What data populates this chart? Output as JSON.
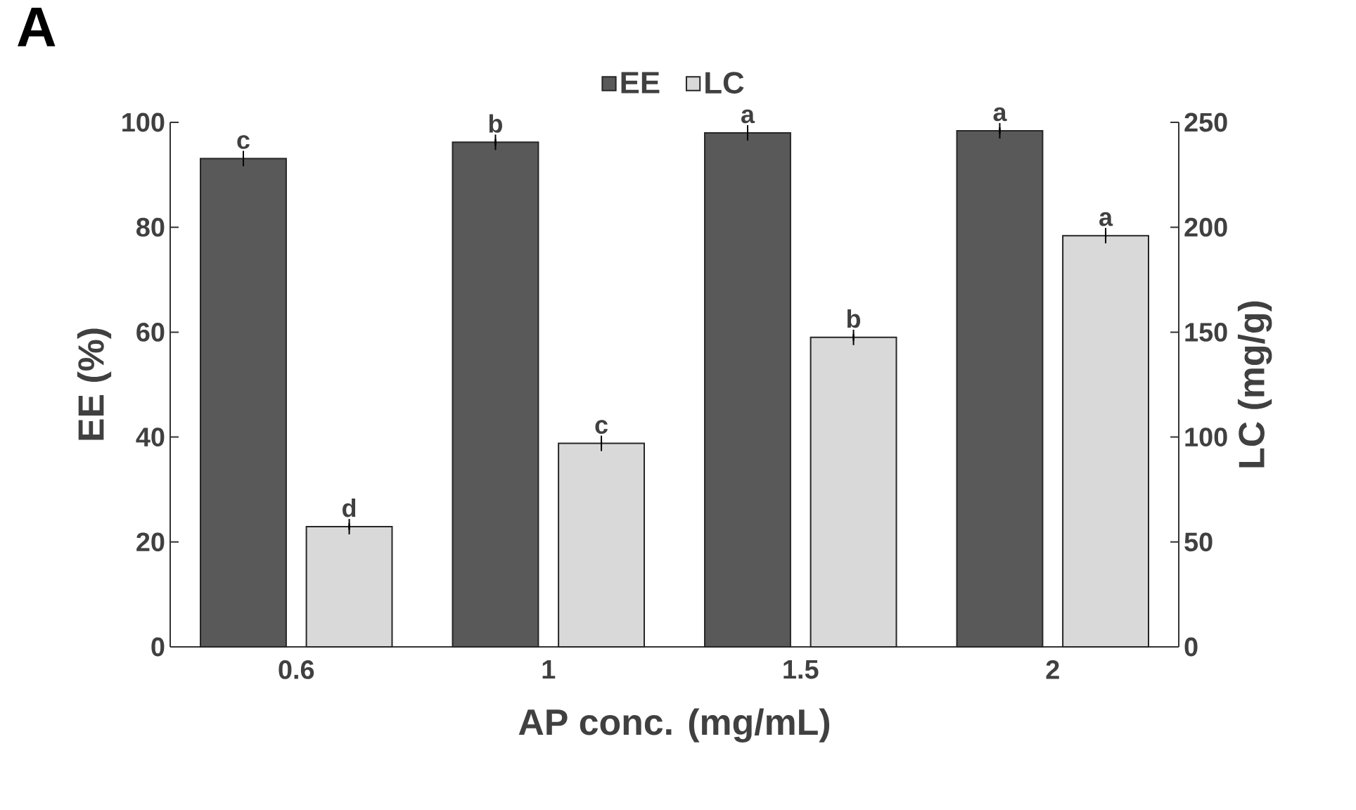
{
  "chart_data": {
    "type": "bar",
    "title": "A",
    "xlabel": "AP conc. (mg/mL)",
    "ylabel": "EE (%)",
    "y2label": "LC (mg/g)",
    "categories": [
      "0.6",
      "1",
      "1.5",
      "2"
    ],
    "series": [
      {
        "name": "EE",
        "color": "#595959",
        "values": [
          93.1,
          96.2,
          98.0,
          98.4
        ],
        "errors": [
          0.4,
          0.4,
          0.4,
          0.4
        ],
        "value_labels": [
          "c",
          "b",
          "a",
          "a"
        ]
      },
      {
        "name": "LC",
        "color": "#d9d9d9",
        "axis": "y2",
        "values": [
          57.3,
          97,
          147.5,
          196
        ],
        "errors": [
          1,
          1,
          1,
          1
        ],
        "value_labels": [
          "d",
          "c",
          "b",
          "a"
        ]
      }
    ],
    "ylim": [
      0,
      100
    ],
    "yticks": [
      0,
      20,
      40,
      60,
      80,
      100
    ],
    "y2lim": [
      0,
      250
    ],
    "y2ticks": [
      0,
      50,
      100,
      150,
      200,
      250
    ],
    "legend": "top"
  }
}
